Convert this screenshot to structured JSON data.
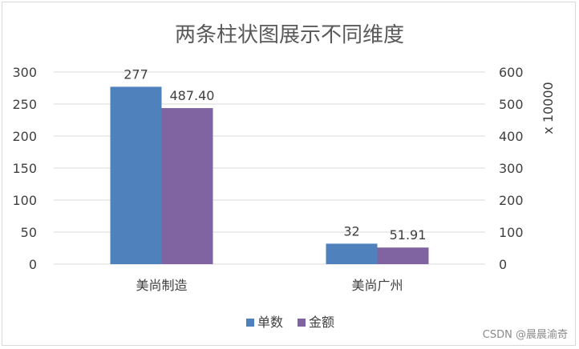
{
  "chart_data": {
    "type": "bar",
    "title": "两条柱状图展示不同维度",
    "categories": [
      "美尚制造",
      "美尚广州"
    ],
    "series": [
      {
        "name": "单数",
        "values": [
          277,
          32
        ],
        "labels": [
          "277",
          "32"
        ],
        "axis": "left",
        "color": "#4f81bd"
      },
      {
        "name": "金额",
        "values": [
          487.4,
          51.91
        ],
        "labels": [
          "487.40",
          "51.91"
        ],
        "axis": "right",
        "color": "#8064a2"
      }
    ],
    "left_axis": {
      "min": 0,
      "max": 300,
      "step": 50,
      "ticks": [
        "0",
        "50",
        "100",
        "150",
        "200",
        "250",
        "300"
      ]
    },
    "right_axis": {
      "min": 0,
      "max": 600,
      "step": 100,
      "ticks": [
        "0",
        "100",
        "200",
        "300",
        "400",
        "500",
        "600"
      ],
      "label": "x 10000"
    },
    "grid": true,
    "legend_position": "bottom"
  },
  "watermark": "CSDN @晨晨渝奇"
}
